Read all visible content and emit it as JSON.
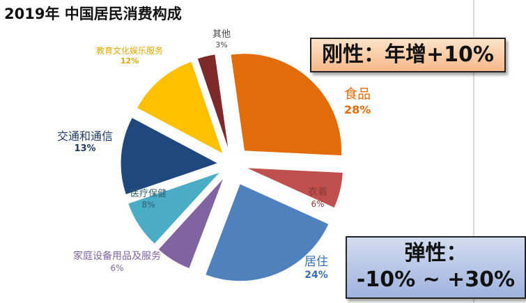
{
  "title": "2019年 中国居民消费构成",
  "chart_data": {
    "type": "pie",
    "title": "2019年 中国居民消费构成",
    "slices": [
      {
        "label": "食品",
        "value": 28,
        "pct": "28%",
        "color": "#e36c0a"
      },
      {
        "label": "衣着",
        "value": 6,
        "pct": "6%",
        "color": "#c0504d"
      },
      {
        "label": "居住",
        "value": 24,
        "pct": "24%",
        "color": "#4f81bd"
      },
      {
        "label": "家庭设备用品及服务",
        "value": 6,
        "pct": "6%",
        "color": "#8064a2"
      },
      {
        "label": "医疗保健",
        "value": 8,
        "pct": "8%",
        "color": "#4bacc6"
      },
      {
        "label": "交通和通信",
        "value": 13,
        "pct": "13%",
        "color": "#1f497d"
      },
      {
        "label": "教育文化娱乐服务",
        "value": 12,
        "pct": "12%",
        "color": "#ffc000"
      },
      {
        "label": "其他",
        "value": 3,
        "pct": "3%",
        "color": "#7f2a2a"
      }
    ]
  },
  "callouts": {
    "rigid": "刚性：年增+10%",
    "elastic_title": "弹性：",
    "elastic_range": "-10% ~ +30%"
  }
}
